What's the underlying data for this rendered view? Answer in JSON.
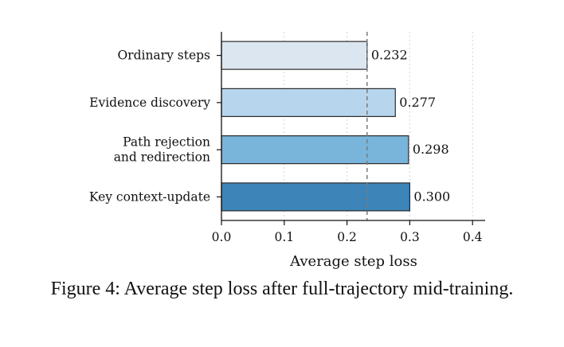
{
  "caption": "Figure 4:  Average step loss after full-trajectory mid-training.",
  "chart_data": {
    "type": "bar",
    "orientation": "horizontal",
    "categories": [
      [
        "Ordinary steps"
      ],
      [
        "Evidence discovery"
      ],
      [
        "Path rejection",
        "and redirection"
      ],
      [
        "Key context-update"
      ]
    ],
    "values": [
      0.232,
      0.277,
      0.298,
      0.3
    ],
    "value_labels": [
      "0.232",
      "0.277",
      "0.298",
      "0.300"
    ],
    "colors": [
      "#dce6f0",
      "#b7d6ee",
      "#79b4da",
      "#3d84b8"
    ],
    "xlabel": "Average step loss",
    "xlim": [
      0.0,
      0.42
    ],
    "xticks": [
      0.0,
      0.1,
      0.2,
      0.3,
      0.4
    ],
    "xtick_labels": [
      "0.0",
      "0.1",
      "0.2",
      "0.3",
      "0.4"
    ],
    "reference_line": 0.232,
    "grid": "vertical dotted"
  }
}
